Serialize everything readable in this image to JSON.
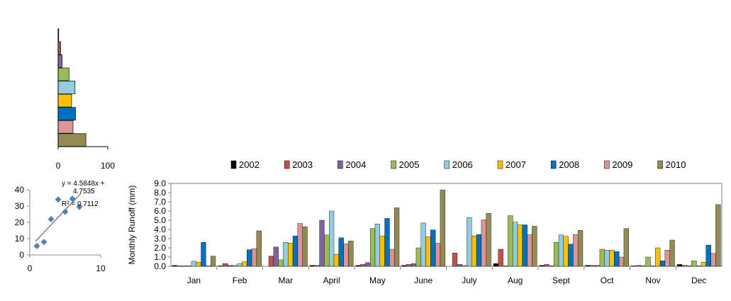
{
  "chart_data": [
    {
      "type": "bar",
      "orientation": "horizontal",
      "colors": [
        "#000000",
        "#c0504d",
        "#8064a2",
        "#9bbb59",
        "#93cddd",
        "#ffc000",
        "#0070c0",
        "#d99694",
        "#948a54"
      ],
      "values": [
        1,
        5,
        8,
        22,
        34,
        27,
        35,
        30,
        56
      ],
      "xlim": [
        0,
        100
      ],
      "xticks": [
        0,
        100
      ]
    },
    {
      "type": "scatter",
      "x": [
        1,
        2,
        3,
        4,
        5,
        6,
        7
      ],
      "y": [
        5.5,
        8,
        22,
        34,
        26.5,
        34.5,
        29.5
      ],
      "xlim": [
        0,
        10
      ],
      "ylim": [
        0,
        40
      ],
      "xticks": [
        0,
        10
      ],
      "yticks": [
        0,
        10,
        20,
        30,
        40
      ],
      "marker_color": "#4f81bd",
      "trendline": {
        "slope": 4.5848,
        "intercept": 4.7535,
        "r2": 0.7112
      },
      "annotations": [
        "y = 4.5848x +",
        "4.7535",
        "R² = 0.7112"
      ]
    },
    {
      "type": "bar",
      "ylabel": "Monthly  Runoff (mm)",
      "ylim": [
        0,
        9
      ],
      "yticks": [
        "0.0",
        "1.0",
        "2.0",
        "3.0",
        "4.0",
        "5.0",
        "6.0",
        "7.0",
        "8.0",
        "9.0"
      ],
      "legend_position": "top",
      "categories": [
        "Jan",
        "Feb",
        "Mar",
        "April",
        "May",
        "June",
        "July",
        "Aug",
        "Sept",
        "Oct",
        "Nov",
        "Dec"
      ],
      "series": [
        {
          "name": "2002",
          "color": "#000000",
          "values": [
            0.1,
            0.05,
            0.0,
            0.1,
            0.1,
            0.1,
            0.0,
            0.3,
            0.1,
            0.1,
            0.05,
            0.2
          ]
        },
        {
          "name": "2003",
          "color": "#c0504d",
          "values": [
            0.05,
            0.3,
            1.1,
            0.1,
            0.2,
            0.2,
            1.45,
            1.85,
            0.2,
            0.1,
            0.1,
            0.1
          ]
        },
        {
          "name": "2004",
          "color": "#8064a2",
          "values": [
            0.05,
            0.1,
            2.1,
            5.0,
            0.4,
            0.3,
            0.2,
            0.05,
            0.05,
            0.1,
            0.05,
            0.05
          ]
        },
        {
          "name": "2005",
          "color": "#9bbb59",
          "values": [
            0.05,
            0.1,
            0.7,
            3.4,
            4.1,
            2.0,
            0.1,
            5.5,
            2.6,
            1.85,
            1.0,
            0.6
          ]
        },
        {
          "name": "2006",
          "color": "#93cddd",
          "values": [
            0.55,
            0.3,
            2.6,
            6.0,
            4.6,
            4.7,
            5.3,
            4.8,
            3.4,
            1.75,
            0.05,
            0.05
          ]
        },
        {
          "name": "2007",
          "color": "#ffc000",
          "values": [
            0.45,
            0.5,
            2.5,
            1.3,
            3.3,
            3.2,
            3.3,
            4.5,
            3.25,
            1.75,
            2.0,
            0.45
          ]
        },
        {
          "name": "2008",
          "color": "#0070c0",
          "values": [
            2.6,
            1.8,
            3.3,
            3.1,
            5.2,
            3.95,
            3.45,
            4.5,
            2.4,
            1.6,
            0.6,
            2.3
          ]
        },
        {
          "name": "2009",
          "color": "#d99694",
          "values": [
            0.05,
            1.9,
            4.65,
            2.45,
            1.85,
            2.5,
            5.05,
            3.45,
            3.45,
            1.0,
            1.75,
            1.4
          ]
        },
        {
          "name": "2010",
          "color": "#948a54",
          "values": [
            1.1,
            3.85,
            4.3,
            2.75,
            6.35,
            8.3,
            5.75,
            4.35,
            3.9,
            4.1,
            2.85,
            6.7
          ]
        }
      ]
    }
  ]
}
